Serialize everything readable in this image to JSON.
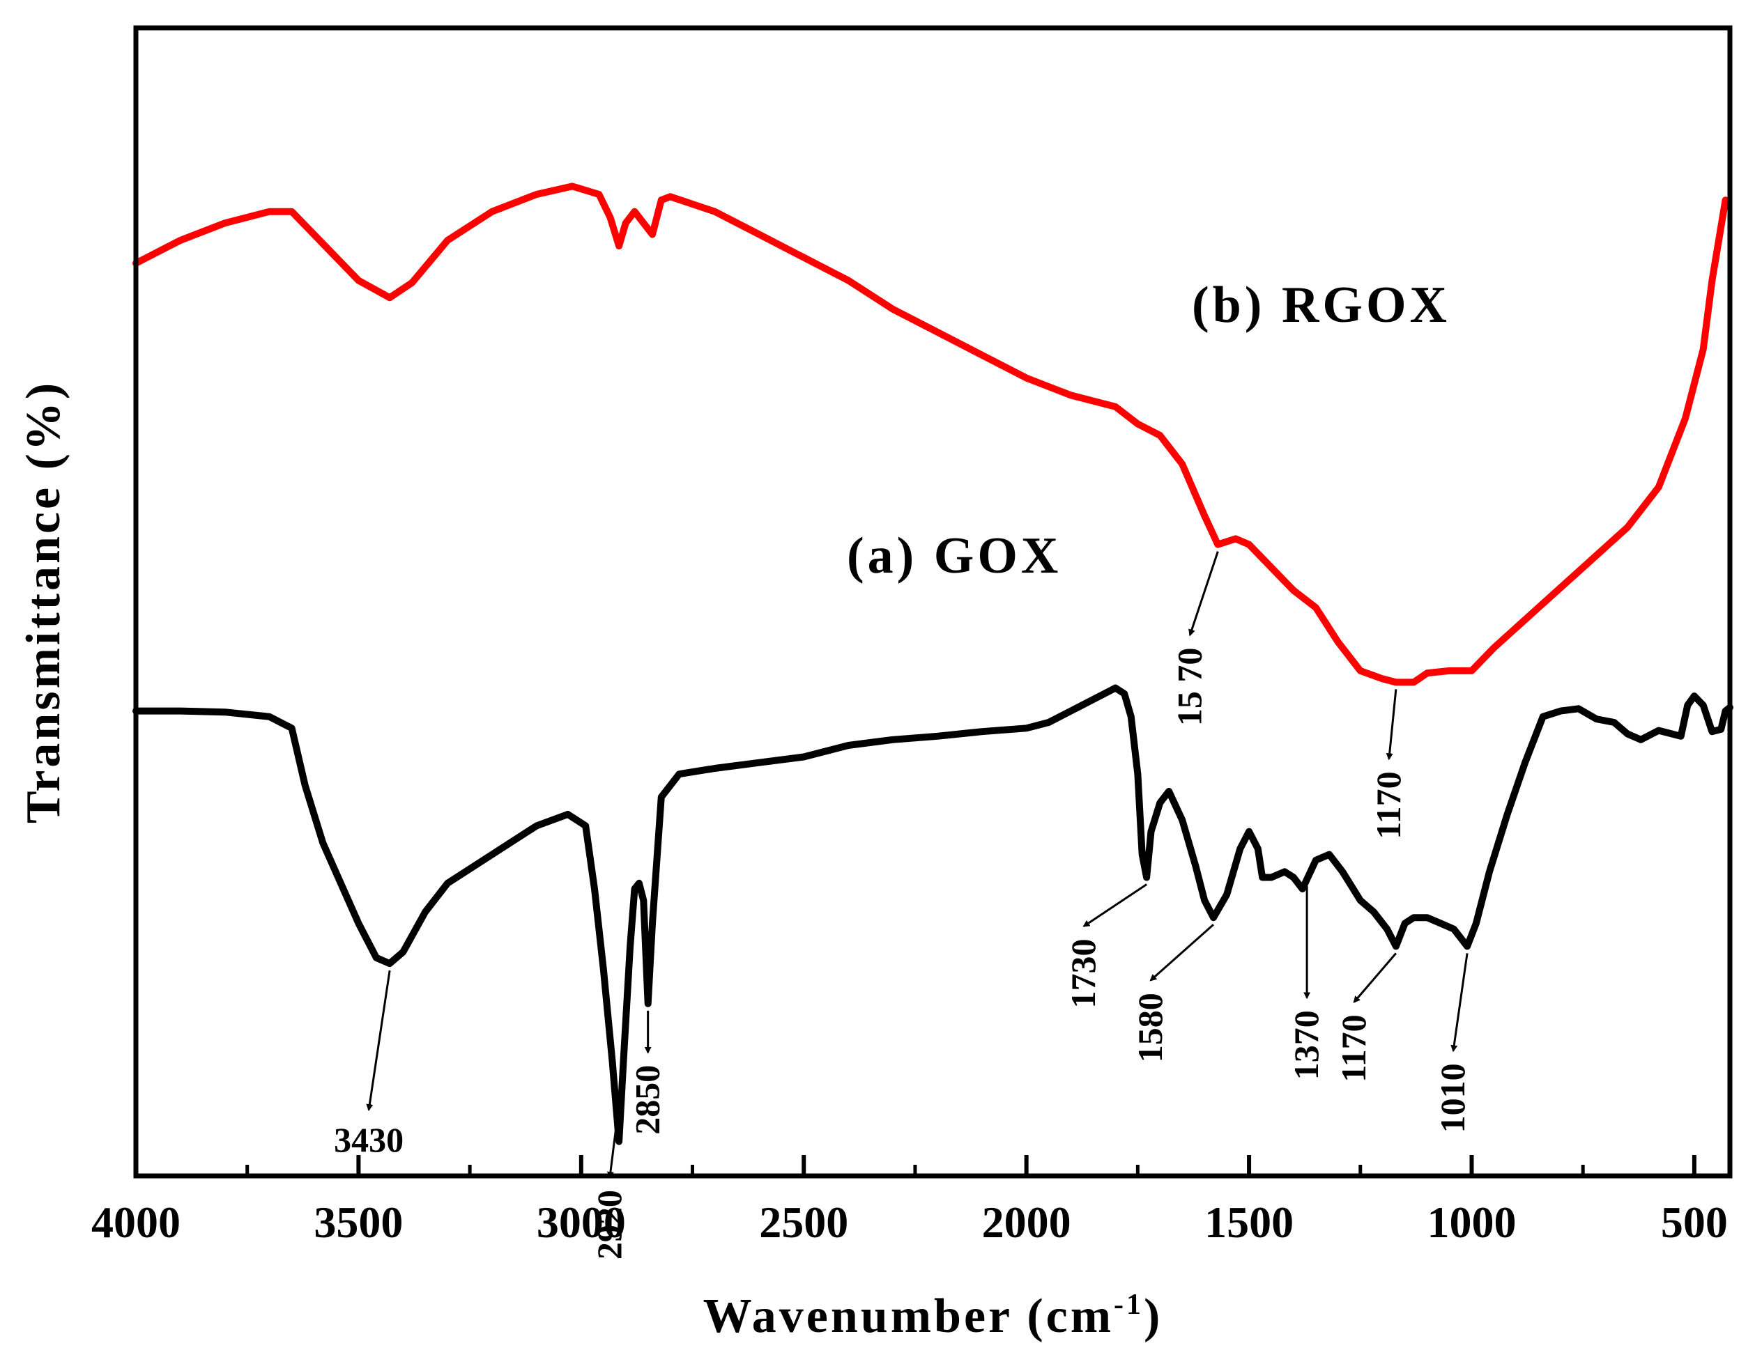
{
  "chart_data": {
    "type": "line",
    "xlabel": "Wavenumber (cm",
    "xlabel_sup": "-1",
    "xlabel_close": ")",
    "ylabel": "Transmittance (%)",
    "xlim": [
      4000,
      420
    ],
    "x_ticks": [
      4000,
      3500,
      3000,
      2500,
      2000,
      1500,
      1000,
      500
    ],
    "x_tick_labels": [
      "4000",
      "3500",
      "3000",
      "2500",
      "2000",
      "1500",
      "1000",
      "500"
    ],
    "y_ticks_shown": false,
    "grid": false,
    "series": [
      {
        "name": "(b) RGOX",
        "color": "#ff0000",
        "points": [
          [
            4000,
            79.5
          ],
          [
            3900,
            81.5
          ],
          [
            3800,
            83
          ],
          [
            3700,
            84
          ],
          [
            3650,
            84
          ],
          [
            3600,
            82
          ],
          [
            3500,
            78
          ],
          [
            3430,
            76.5
          ],
          [
            3380,
            77.8
          ],
          [
            3300,
            81.5
          ],
          [
            3200,
            84
          ],
          [
            3100,
            85.5
          ],
          [
            3020,
            86.2
          ],
          [
            2960,
            85.5
          ],
          [
            2935,
            83.5
          ],
          [
            2915,
            81
          ],
          [
            2900,
            83
          ],
          [
            2880,
            84
          ],
          [
            2860,
            83
          ],
          [
            2840,
            82
          ],
          [
            2820,
            85
          ],
          [
            2800,
            85.3
          ],
          [
            2700,
            84
          ],
          [
            2600,
            82
          ],
          [
            2500,
            80
          ],
          [
            2400,
            78
          ],
          [
            2300,
            75.5
          ],
          [
            2200,
            73.5
          ],
          [
            2100,
            71.5
          ],
          [
            2000,
            69.5
          ],
          [
            1900,
            68
          ],
          [
            1800,
            67
          ],
          [
            1750,
            65.5
          ],
          [
            1700,
            64.5
          ],
          [
            1650,
            62
          ],
          [
            1600,
            57.5
          ],
          [
            1570,
            55
          ],
          [
            1530,
            55.5
          ],
          [
            1500,
            55
          ],
          [
            1450,
            53
          ],
          [
            1400,
            51
          ],
          [
            1350,
            49.5
          ],
          [
            1300,
            46.5
          ],
          [
            1250,
            44
          ],
          [
            1200,
            43.3
          ],
          [
            1170,
            43
          ],
          [
            1130,
            43
          ],
          [
            1100,
            43.8
          ],
          [
            1050,
            44
          ],
          [
            1000,
            44
          ],
          [
            950,
            46
          ],
          [
            850,
            49.5
          ],
          [
            750,
            53
          ],
          [
            650,
            56.5
          ],
          [
            580,
            60
          ],
          [
            520,
            66
          ],
          [
            480,
            72
          ],
          [
            460,
            78
          ],
          [
            430,
            85
          ]
        ]
      },
      {
        "name": "(a) GOX",
        "color": "#000000",
        "points": [
          [
            4000,
            40.5
          ],
          [
            3900,
            40.5
          ],
          [
            3800,
            40.4
          ],
          [
            3700,
            40
          ],
          [
            3650,
            39
          ],
          [
            3620,
            34
          ],
          [
            3580,
            29
          ],
          [
            3500,
            22
          ],
          [
            3460,
            19
          ],
          [
            3430,
            18.5
          ],
          [
            3400,
            19.5
          ],
          [
            3350,
            23
          ],
          [
            3300,
            25.5
          ],
          [
            3200,
            28
          ],
          [
            3100,
            30.5
          ],
          [
            3030,
            31.5
          ],
          [
            2990,
            30.5
          ],
          [
            2970,
            25
          ],
          [
            2950,
            18
          ],
          [
            2930,
            10
          ],
          [
            2915,
            3
          ],
          [
            2905,
            10
          ],
          [
            2890,
            20
          ],
          [
            2880,
            25
          ],
          [
            2870,
            25.5
          ],
          [
            2860,
            24
          ],
          [
            2850,
            15
          ],
          [
            2840,
            22
          ],
          [
            2820,
            33
          ],
          [
            2780,
            35
          ],
          [
            2700,
            35.5
          ],
          [
            2600,
            36
          ],
          [
            2500,
            36.5
          ],
          [
            2400,
            37.5
          ],
          [
            2300,
            38
          ],
          [
            2200,
            38.3
          ],
          [
            2100,
            38.7
          ],
          [
            2000,
            39
          ],
          [
            1950,
            39.5
          ],
          [
            1900,
            40.5
          ],
          [
            1850,
            41.5
          ],
          [
            1800,
            42.5
          ],
          [
            1780,
            42
          ],
          [
            1765,
            40
          ],
          [
            1750,
            35
          ],
          [
            1740,
            28
          ],
          [
            1730,
            26
          ],
          [
            1720,
            30
          ],
          [
            1700,
            32.5
          ],
          [
            1680,
            33.5
          ],
          [
            1650,
            31
          ],
          [
            1620,
            27
          ],
          [
            1600,
            24
          ],
          [
            1580,
            22.5
          ],
          [
            1550,
            24.5
          ],
          [
            1520,
            28.5
          ],
          [
            1500,
            30
          ],
          [
            1480,
            28.5
          ],
          [
            1470,
            26
          ],
          [
            1450,
            26
          ],
          [
            1420,
            26.5
          ],
          [
            1400,
            26
          ],
          [
            1380,
            25
          ],
          [
            1350,
            27.5
          ],
          [
            1320,
            28
          ],
          [
            1290,
            26.5
          ],
          [
            1250,
            24
          ],
          [
            1220,
            23
          ],
          [
            1190,
            21.5
          ],
          [
            1170,
            20
          ],
          [
            1150,
            22
          ],
          [
            1130,
            22.5
          ],
          [
            1100,
            22.5
          ],
          [
            1070,
            22
          ],
          [
            1040,
            21.5
          ],
          [
            1010,
            20
          ],
          [
            990,
            22
          ],
          [
            960,
            26.5
          ],
          [
            920,
            31.5
          ],
          [
            880,
            36
          ],
          [
            840,
            40
          ],
          [
            800,
            40.5
          ],
          [
            760,
            40.7
          ],
          [
            720,
            39.8
          ],
          [
            680,
            39.5
          ],
          [
            650,
            38.5
          ],
          [
            620,
            38
          ],
          [
            580,
            38.8
          ],
          [
            530,
            38.3
          ],
          [
            515,
            41
          ],
          [
            500,
            41.8
          ],
          [
            480,
            41
          ],
          [
            460,
            38.7
          ],
          [
            440,
            38.9
          ],
          [
            430,
            40.5
          ],
          [
            420,
            40.8
          ]
        ]
      }
    ],
    "annotations": [
      {
        "label": "3430",
        "series": "(a) GOX",
        "x": 3430,
        "rotate": false
      },
      {
        "label": "2920",
        "series": "(a) GOX",
        "x": 2920,
        "rotate": true
      },
      {
        "label": "2850",
        "series": "(a) GOX",
        "x": 2850,
        "rotate": true
      },
      {
        "label": "1730",
        "series": "(a) GOX",
        "x": 1730,
        "rotate": true
      },
      {
        "label": "1580",
        "series": "(a) GOX",
        "x": 1580,
        "rotate": true
      },
      {
        "label": "1370",
        "series": "(a) GOX",
        "x": 1370,
        "rotate": true
      },
      {
        "label": "1170",
        "series": "(a) GOX",
        "x": 1170,
        "rotate": true
      },
      {
        "label": "1010",
        "series": "(a) GOX",
        "x": 1010,
        "rotate": true
      },
      {
        "label": "15 70",
        "series": "(b) RGOX",
        "x": 1570,
        "rotate": true
      },
      {
        "label": "1170",
        "series": "(b) RGOX",
        "x": 1170,
        "rotate": true
      }
    ]
  }
}
